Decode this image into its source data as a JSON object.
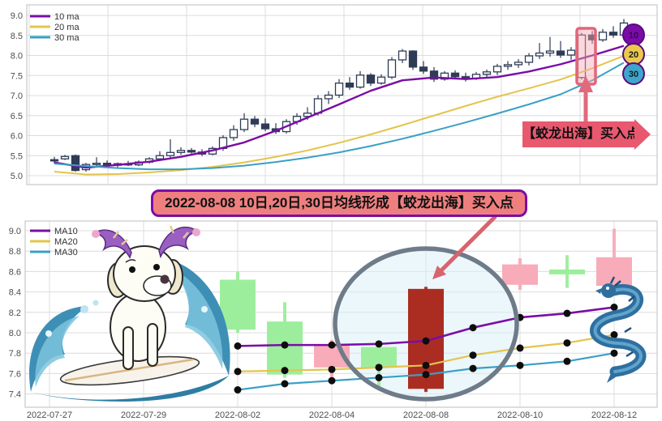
{
  "banner": {
    "text": "2022-08-08 10日,20日,30日均线形成【蛟龙出海】买入点",
    "background": "#ef7f7f",
    "border_color": "#7a0da5"
  },
  "top_annotation": {
    "label": "【蛟龙出海】买入点",
    "background": "#e8586f"
  },
  "chart_data": [
    {
      "id": "daily-kline-with-ma",
      "type": "candlestick+line",
      "title": "",
      "ylim": [
        4.78,
        9.26
      ],
      "y_ticks": [
        9.0,
        8.5,
        8.0,
        7.5,
        7.0,
        6.5,
        6.0,
        5.5,
        5.0
      ],
      "grid": true,
      "legend_position": "top-left",
      "legend": [
        {
          "name": "10 ma",
          "color": "#7a0da5"
        },
        {
          "name": "20 ma",
          "color": "#e4c44c"
        },
        {
          "name": "30 ma",
          "color": "#39a0c6"
        }
      ],
      "candle_up_style": "hollow",
      "candle_color": "#2e3c55",
      "candles": [
        [
          5.4,
          5.47,
          5.3,
          5.37
        ],
        [
          5.42,
          5.52,
          5.39,
          5.48
        ],
        [
          5.5,
          5.53,
          5.1,
          5.13
        ],
        [
          5.15,
          5.32,
          5.1,
          5.28
        ],
        [
          5.28,
          5.46,
          5.22,
          5.31
        ],
        [
          5.31,
          5.38,
          5.22,
          5.26
        ],
        [
          5.26,
          5.33,
          5.2,
          5.3
        ],
        [
          5.3,
          5.37,
          5.24,
          5.27
        ],
        [
          5.27,
          5.38,
          5.24,
          5.34
        ],
        [
          5.34,
          5.46,
          5.3,
          5.42
        ],
        [
          5.42,
          5.61,
          5.38,
          5.5
        ],
        [
          5.5,
          5.91,
          5.45,
          5.58
        ],
        [
          5.58,
          5.71,
          5.52,
          5.63
        ],
        [
          5.63,
          5.69,
          5.55,
          5.59
        ],
        [
          5.59,
          5.66,
          5.49,
          5.54
        ],
        [
          5.54,
          5.73,
          5.51,
          5.68
        ],
        [
          5.68,
          6.01,
          5.62,
          5.95
        ],
        [
          5.95,
          6.26,
          5.87,
          6.15
        ],
        [
          6.15,
          6.56,
          6.09,
          6.41
        ],
        [
          6.41,
          6.49,
          6.21,
          6.29
        ],
        [
          6.29,
          6.43,
          6.11,
          6.17
        ],
        [
          6.17,
          6.31,
          6.04,
          6.1
        ],
        [
          6.1,
          6.41,
          6.05,
          6.35
        ],
        [
          6.35,
          6.56,
          6.27,
          6.48
        ],
        [
          6.48,
          6.71,
          6.39,
          6.56
        ],
        [
          6.56,
          7.01,
          6.5,
          6.92
        ],
        [
          6.92,
          7.11,
          6.79,
          7.01
        ],
        [
          7.01,
          7.41,
          6.94,
          7.31
        ],
        [
          7.31,
          7.46,
          7.14,
          7.21
        ],
        [
          7.21,
          7.61,
          7.17,
          7.51
        ],
        [
          7.51,
          7.56,
          7.24,
          7.31
        ],
        [
          7.31,
          7.53,
          7.27,
          7.46
        ],
        [
          7.46,
          7.96,
          7.41,
          7.89
        ],
        [
          7.89,
          8.16,
          7.81,
          8.11
        ],
        [
          8.11,
          8.13,
          7.64,
          7.71
        ],
        [
          7.71,
          7.86,
          7.54,
          7.61
        ],
        [
          7.61,
          7.71,
          7.34,
          7.41
        ],
        [
          7.41,
          7.61,
          7.37,
          7.56
        ],
        [
          7.56,
          7.63,
          7.41,
          7.47
        ],
        [
          7.47,
          7.57,
          7.35,
          7.43
        ],
        [
          7.43,
          7.59,
          7.39,
          7.53
        ],
        [
          7.53,
          7.65,
          7.45,
          7.59
        ],
        [
          7.59,
          7.79,
          7.51,
          7.73
        ],
        [
          7.73,
          7.86,
          7.64,
          7.77
        ],
        [
          7.77,
          7.91,
          7.69,
          7.83
        ],
        [
          7.83,
          8.06,
          7.75,
          7.99
        ],
        [
          7.99,
          8.31,
          7.91,
          8.06
        ],
        [
          8.06,
          8.46,
          7.97,
          8.11
        ],
        [
          8.11,
          8.36,
          7.94,
          8.01
        ],
        [
          8.01,
          8.21,
          7.89,
          8.13
        ],
        [
          7.45,
          8.56,
          7.4,
          8.51
        ],
        [
          8.51,
          8.61,
          8.29,
          8.39
        ],
        [
          8.39,
          8.66,
          8.34,
          8.58
        ],
        [
          8.58,
          8.73,
          8.44,
          8.51
        ],
        [
          8.51,
          8.91,
          8.47,
          8.81
        ]
      ],
      "series_index_step": 3,
      "series": [
        {
          "name": "10 ma",
          "color": "#7a0da5",
          "values": [
            5.33,
            5.2,
            5.27,
            5.35,
            5.47,
            5.63,
            5.83,
            6.12,
            6.45,
            6.78,
            7.12,
            7.38,
            7.45,
            7.41,
            7.46,
            7.6,
            7.78,
            8.0,
            8.24
          ]
        },
        {
          "name": "20 ma",
          "color": "#e4c44c",
          "values": [
            5.1,
            5.03,
            5.04,
            5.08,
            5.14,
            5.22,
            5.33,
            5.47,
            5.63,
            5.82,
            6.03,
            6.26,
            6.5,
            6.74,
            6.97,
            7.18,
            7.4,
            7.68,
            7.99
          ]
        },
        {
          "name": "30 ma",
          "color": "#39a0c6",
          "values": [
            5.3,
            5.24,
            5.19,
            5.16,
            5.16,
            5.19,
            5.25,
            5.34,
            5.45,
            5.58,
            5.74,
            5.92,
            6.12,
            6.33,
            6.55,
            6.78,
            7.03,
            7.38,
            7.82
          ]
        }
      ],
      "highlight": {
        "candle_index": 50,
        "label": "【蛟龙出海】买入点"
      },
      "badges": [
        {
          "label": "10",
          "fill": "#7a0da5",
          "text_color": "#38045c"
        },
        {
          "label": "20",
          "fill": "#eac94e",
          "text_color": "#1a1a1a"
        },
        {
          "label": "30",
          "fill": "#3fa6cb",
          "text_color": "#102028"
        }
      ]
    },
    {
      "id": "dragon-out-of-sea-kline",
      "type": "candlestick+line",
      "title": "",
      "ylim": [
        7.25,
        9.1
      ],
      "y_ticks": [
        9.0,
        8.8,
        8.6,
        8.4,
        8.2,
        8.0,
        7.8,
        7.6,
        7.4
      ],
      "grid": true,
      "x_ticks": [
        "2022-07-27",
        "2022-07-29",
        "2022-08-02",
        "2022-08-04",
        "2022-08-08",
        "2022-08-10",
        "2022-08-12"
      ],
      "trading_days": [
        "2022-07-27",
        "2022-07-28",
        "2022-07-29",
        "2022-08-01",
        "2022-08-02",
        "2022-08-03",
        "2022-08-04",
        "2022-08-05",
        "2022-08-08",
        "2022-08-09",
        "2022-08-10",
        "2022-08-11",
        "2022-08-12"
      ],
      "legend_position": "top-left",
      "legend": [
        {
          "name": "MA10",
          "color": "#7a0da5"
        },
        {
          "name": "MA20",
          "color": "#e4c44c"
        },
        {
          "name": "MA30",
          "color": "#39a0c6"
        }
      ],
      "candles": [
        {
          "date": "2022-08-02",
          "open": 8.52,
          "high": 8.6,
          "low": 8.0,
          "close": 8.03,
          "color": "#9cee9c"
        },
        {
          "date": "2022-08-03",
          "open": 8.11,
          "high": 8.3,
          "low": 7.56,
          "close": 7.59,
          "color": "#9cee9c"
        },
        {
          "date": "2022-08-04",
          "open": 7.66,
          "high": 7.93,
          "low": 7.55,
          "close": 7.88,
          "color": "#f8abb9"
        },
        {
          "date": "2022-08-05",
          "open": 7.86,
          "high": 7.88,
          "low": 7.44,
          "close": 7.66,
          "color": "#9cee9c"
        },
        {
          "date": "2022-08-08",
          "open": 7.45,
          "high": 8.45,
          "low": 7.42,
          "close": 8.43,
          "color": "#ab2d22",
          "highlight": true
        },
        {
          "date": "2022-08-10",
          "open": 8.47,
          "high": 8.73,
          "low": 8.42,
          "close": 8.67,
          "color": "#f8abb9"
        },
        {
          "date": "2022-08-11",
          "open": 8.62,
          "high": 8.76,
          "low": 8.44,
          "close": 8.6,
          "color": "#9cee9c"
        },
        {
          "date": "2022-08-12",
          "open": 8.46,
          "high": 9.02,
          "low": 8.4,
          "close": 8.74,
          "color": "#f8abb9"
        }
      ],
      "series_dates": [
        "2022-08-02",
        "2022-08-03",
        "2022-08-04",
        "2022-08-05",
        "2022-08-08",
        "2022-08-09",
        "2022-08-10",
        "2022-08-11",
        "2022-08-12"
      ],
      "series": [
        {
          "name": "MA10",
          "color": "#7a0da5",
          "values": [
            7.87,
            7.88,
            7.88,
            7.89,
            7.92,
            8.05,
            8.15,
            8.19,
            8.25
          ]
        },
        {
          "name": "MA20",
          "color": "#e4c44c",
          "values": [
            7.62,
            7.63,
            7.64,
            7.66,
            7.68,
            7.78,
            7.85,
            7.9,
            7.98
          ]
        },
        {
          "name": "MA30",
          "color": "#39a0c6",
          "values": [
            7.44,
            7.5,
            7.53,
            7.56,
            7.59,
            7.65,
            7.68,
            7.72,
            7.8
          ]
        }
      ],
      "ellipse_highlight": {
        "around": "2022-08-08"
      }
    }
  ]
}
